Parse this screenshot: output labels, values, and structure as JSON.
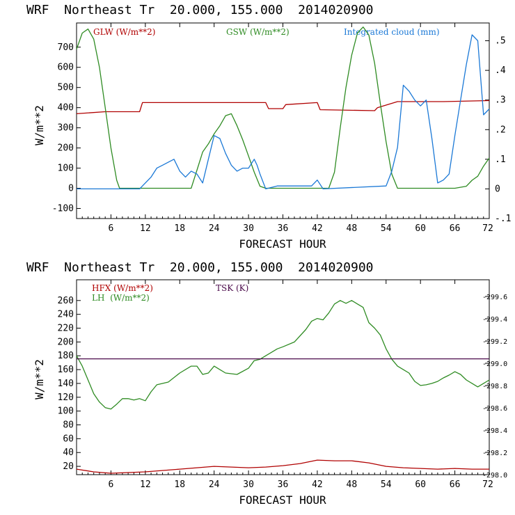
{
  "chart_data": [
    {
      "type": "line",
      "title": "WRF  Northeast Tr  20.000, 155.000  2014020900",
      "xlabel": "FORECAST HOUR",
      "ylabel": "W/m**2",
      "y2label": "",
      "xlim": [
        0,
        72
      ],
      "ylim": [
        -150,
        820
      ],
      "y2lim": [
        -0.1,
        0.56
      ],
      "x_ticks": [
        6,
        12,
        18,
        24,
        30,
        36,
        42,
        48,
        54,
        60,
        66,
        72
      ],
      "y_ticks": [
        -100,
        0,
        100,
        200,
        300,
        400,
        500,
        600,
        700
      ],
      "y2_ticks": [
        -0.1,
        0,
        0.1,
        0.2,
        0.3,
        0.4,
        0.5
      ],
      "y2_tick_labels": [
        "-.1",
        "0",
        ".1",
        ".2",
        ".3",
        ".4",
        ".5"
      ],
      "grid": false,
      "legend": "top",
      "series": [
        {
          "name": "GLW (W/m**2)",
          "color": "#b00000",
          "axis": "left",
          "x": [
            0,
            5,
            11,
            11.5,
            22,
            33,
            33.5,
            36,
            36.5,
            42,
            42.5,
            52,
            52.5,
            56,
            60,
            64,
            72
          ],
          "y": [
            370,
            380,
            380,
            425,
            425,
            425,
            395,
            395,
            415,
            425,
            390,
            385,
            400,
            430,
            430,
            430,
            435
          ]
        },
        {
          "name": "GSW (W/m**2)",
          "color": "#2e8b22",
          "axis": "left",
          "x": [
            0,
            1,
            2,
            3,
            4,
            5,
            6,
            7,
            7.5,
            8,
            20,
            21,
            22,
            23,
            24,
            25,
            26,
            27,
            28,
            29,
            30,
            31,
            32,
            33,
            44,
            45,
            46,
            47,
            48,
            49,
            50,
            51,
            52,
            53,
            54,
            55,
            56,
            66,
            68,
            69,
            70,
            71,
            72
          ],
          "y": [
            690,
            770,
            790,
            740,
            600,
            400,
            200,
            40,
            0,
            0,
            0,
            90,
            180,
            220,
            270,
            310,
            360,
            370,
            310,
            240,
            160,
            80,
            10,
            0,
            0,
            80,
            300,
            500,
            660,
            770,
            800,
            760,
            620,
            420,
            230,
            70,
            0,
            0,
            10,
            40,
            60,
            110,
            150
          ]
        },
        {
          "name": "Integrated cloud (mm)",
          "color": "#1a78d6",
          "axis": "right",
          "x": [
            0,
            11,
            12,
            13,
            14,
            15,
            16,
            17,
            18,
            19,
            20,
            21,
            22,
            23,
            24,
            25,
            26,
            27,
            28,
            29,
            30,
            31,
            31.5,
            32,
            33,
            35,
            36,
            41,
            42,
            43,
            54,
            55,
            56,
            57,
            58,
            59,
            60,
            61,
            62,
            63,
            64,
            65,
            66,
            67,
            68,
            69,
            70,
            71,
            72
          ],
          "y": [
            0,
            0,
            0.02,
            0.04,
            0.07,
            0.08,
            0.09,
            0.1,
            0.06,
            0.04,
            0.06,
            0.05,
            0.02,
            0.1,
            0.18,
            0.17,
            0.12,
            0.08,
            0.06,
            0.07,
            0.07,
            0.1,
            0.08,
            0.05,
            0.0,
            0.01,
            0.01,
            0.01,
            0.03,
            0.0,
            0.01,
            0.06,
            0.14,
            0.35,
            0.33,
            0.3,
            0.28,
            0.3,
            0.17,
            0.02,
            0.03,
            0.05,
            0.18,
            0.3,
            0.42,
            0.52,
            0.5,
            0.25,
            0.27
          ]
        }
      ]
    },
    {
      "type": "line",
      "title": "WRF  Northeast Tr  20.000, 155.000  2014020900",
      "xlabel": "FORECAST HOUR",
      "ylabel": "W/m**2",
      "y2label": "",
      "xlim": [
        0,
        72
      ],
      "ylim": [
        8,
        290
      ],
      "y2lim": [
        298.0,
        299.75
      ],
      "x_ticks": [
        6,
        12,
        18,
        24,
        30,
        36,
        42,
        48,
        54,
        60,
        66,
        72
      ],
      "y_ticks": [
        20,
        40,
        60,
        80,
        100,
        120,
        140,
        160,
        180,
        200,
        220,
        240,
        260
      ],
      "y2_ticks": [
        298.0,
        298.2,
        298.4,
        298.6,
        298.8,
        299.0,
        299.2,
        299.4,
        299.6
      ],
      "y2_tick_labels": [
        "298.0",
        "298.2",
        "298.4",
        "298.6",
        "298.8",
        "299.0",
        "299.2",
        "299.4",
        "299.6"
      ],
      "grid": false,
      "legend": "top-left",
      "series": [
        {
          "name": "HFX (W/m**2)",
          "color": "#b00000",
          "axis": "left",
          "x": [
            0,
            3,
            6,
            12,
            18,
            21,
            24,
            27,
            30,
            33,
            36,
            39,
            42,
            45,
            48,
            51,
            54,
            57,
            60,
            63,
            66,
            69,
            72
          ],
          "y": [
            16,
            12,
            10,
            12,
            16,
            18,
            20,
            19,
            18,
            19,
            21,
            24,
            29,
            28,
            28,
            25,
            20,
            18,
            17,
            16,
            17,
            16,
            16
          ]
        },
        {
          "name": "LH  (W/m**2)",
          "color": "#2e8b22",
          "axis": "left",
          "x": [
            0,
            1,
            2,
            3,
            4,
            5,
            6,
            7,
            8,
            9,
            10,
            11,
            12,
            13,
            14,
            16,
            18,
            20,
            21,
            22,
            23,
            24,
            25,
            26,
            28,
            30,
            31,
            32,
            33,
            34,
            35,
            36,
            38,
            40,
            41,
            42,
            43,
            44,
            45,
            46,
            47,
            48,
            49,
            50,
            51,
            52,
            53,
            54,
            55,
            56,
            57,
            58,
            59,
            60,
            61,
            62,
            63,
            64,
            65,
            66,
            67,
            68,
            69,
            70,
            71,
            72
          ],
          "y": [
            180,
            165,
            145,
            125,
            113,
            105,
            103,
            110,
            118,
            118,
            116,
            118,
            115,
            128,
            138,
            142,
            155,
            165,
            165,
            153,
            155,
            165,
            160,
            155,
            153,
            162,
            173,
            175,
            180,
            185,
            190,
            193,
            200,
            218,
            230,
            234,
            232,
            242,
            255,
            260,
            256,
            260,
            255,
            250,
            228,
            220,
            210,
            190,
            175,
            165,
            160,
            155,
            143,
            137,
            138,
            140,
            143,
            148,
            152,
            157,
            153,
            145,
            140,
            135,
            140,
            145
          ]
        },
        {
          "name": "TSK (K)",
          "color": "#4a0a4a",
          "axis": "right",
          "x": [
            0,
            72
          ],
          "y": [
            299.04,
            299.04
          ]
        }
      ]
    }
  ]
}
